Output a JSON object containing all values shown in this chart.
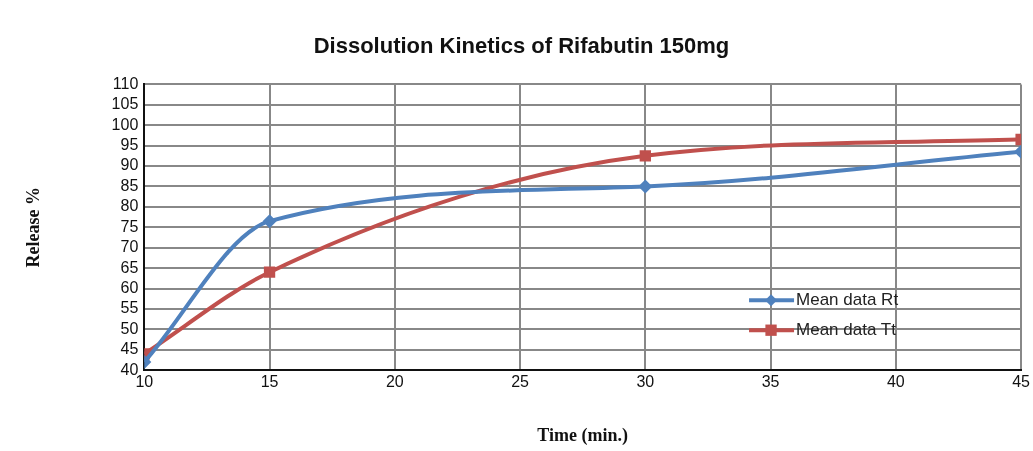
{
  "chart_data": {
    "type": "line",
    "title": "Dissolution Kinetics of Rifabutin 150mg",
    "xlabel": "Time (min.)",
    "ylabel": "Release %",
    "x": [
      10,
      15,
      30,
      45
    ],
    "series": [
      {
        "name": "Mean data Rt",
        "color": "#4f81bd",
        "values": [
          42,
          76.5,
          85,
          93.5
        ],
        "marker": "diamond"
      },
      {
        "name": "Mean data Tt",
        "color": "#c0504d",
        "values": [
          44,
          64,
          92.5,
          96.5
        ],
        "marker": "square"
      }
    ],
    "xlim": [
      10,
      45
    ],
    "xticks": [
      10,
      15,
      20,
      25,
      30,
      35,
      40,
      45
    ],
    "ylim": [
      40,
      110
    ],
    "yticks": [
      40,
      45,
      50,
      55,
      60,
      65,
      70,
      75,
      80,
      85,
      90,
      95,
      100,
      105,
      110
    ],
    "grid": true,
    "legend": "bottom right",
    "line_style": "solid"
  }
}
